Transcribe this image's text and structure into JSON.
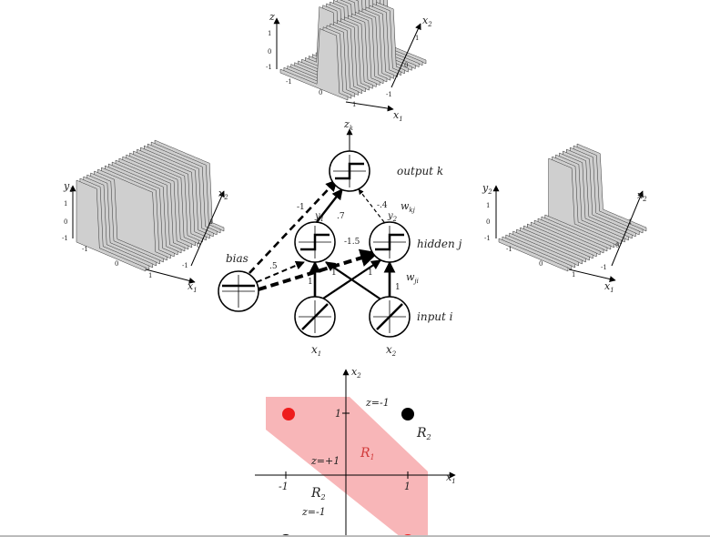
{
  "colors": {
    "region_fill": "#f8b6b8",
    "point_red": "#ee1c1c",
    "point_black": "#000000",
    "surface": "#cfcfcf",
    "edge": "#333333"
  },
  "plots_3d": {
    "top": {
      "z_label": "z",
      "x1_label": "x",
      "x1_sub": "1",
      "x2_label": "x",
      "x2_sub": "2",
      "z_ticks": [
        "1",
        "0",
        "-1"
      ],
      "x1_ticks": [
        "-1",
        "0",
        "1"
      ],
      "x2_ticks": [
        "-1",
        "0",
        "1"
      ]
    },
    "left": {
      "y_label": "y",
      "y_sub": "1",
      "x1_label": "x",
      "x1_sub": "1",
      "x2_label": "x",
      "x2_sub": "2",
      "y_ticks": [
        "1",
        "0",
        "-1"
      ],
      "x1_ticks": [
        "-1",
        "0",
        "1"
      ],
      "x2_ticks": [
        "-1",
        "0",
        "1"
      ]
    },
    "right": {
      "y_label": "y",
      "y_sub": "2",
      "x1_label": "x",
      "x1_sub": "1",
      "x2_label": "x",
      "x2_sub": "2",
      "y_ticks": [
        "1",
        "0",
        "-1"
      ],
      "x1_ticks": [
        "-1",
        "0",
        "1"
      ],
      "x2_ticks": [
        "-1",
        "0",
        "1"
      ]
    }
  },
  "network": {
    "output_label": "output k",
    "hidden_label": "hidden j",
    "input_label": "input i",
    "bias_label": "bias",
    "z_k": "z",
    "z_sub": "k",
    "w_kj": "w",
    "w_kj_sub": "kj",
    "w_ji": "w",
    "w_ji_sub": "ji",
    "y1": "y",
    "y1_sub": "1",
    "y2": "y",
    "y2_sub": "2",
    "x1": "x",
    "x1_sub": "1",
    "x2": "x",
    "x2_sub": "2",
    "weights": {
      "y1_to_out": ".7",
      "y2_to_out": "-.4",
      "bias_to_out": "-1",
      "bias_to_y1": ".5",
      "bias_to_y2": "-1.5",
      "x1_to_y1": "1",
      "x1_to_y2": "1",
      "x2_to_y1": "1",
      "x2_to_y2": "1"
    }
  },
  "decision_plot": {
    "x1_label": "x",
    "x1_sub": "1",
    "x2_label": "x",
    "x2_sub": "2",
    "tick_x_neg": "-1",
    "tick_x_pos": "1",
    "tick_y_pos": "1",
    "z_minus_top": "z=-1",
    "z_plus": "z=+1",
    "z_minus_bottom": "z=-1",
    "region_r1": "R",
    "region_r1_sub": "1",
    "region_r2_top": "R",
    "region_r2_top_sub": "2",
    "region_r2_bottom": "R",
    "region_r2_bottom_sub": "2"
  }
}
